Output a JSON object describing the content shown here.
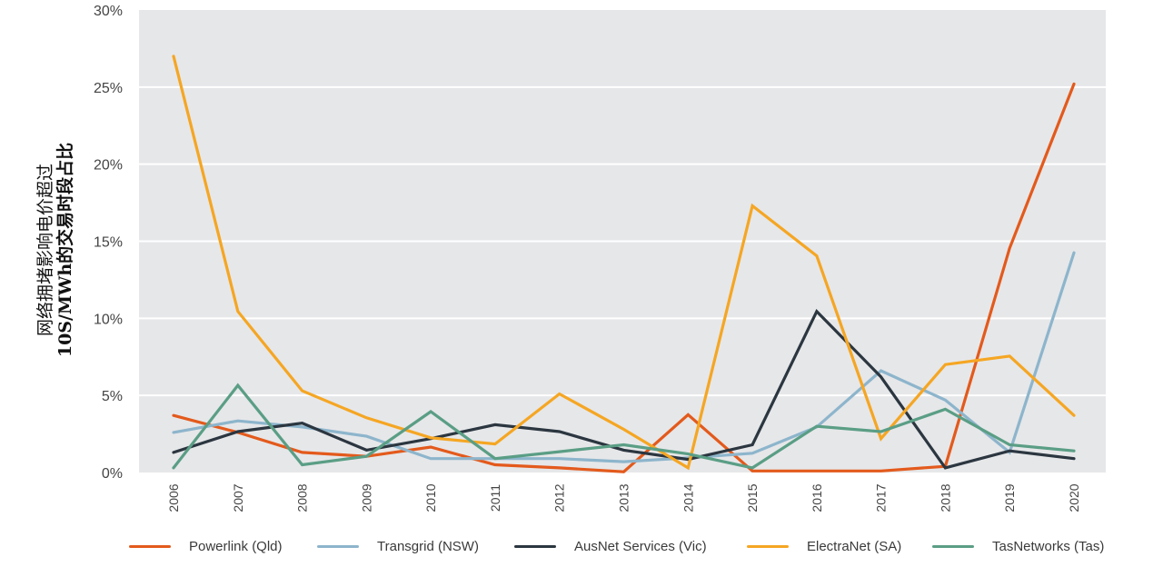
{
  "chart_data": {
    "type": "line",
    "title": "",
    "xlabel": "",
    "ylabel_lines": [
      "网络拥堵影响电价超过",
      "10S/MWh的交易时段占比"
    ],
    "x": [
      "2006",
      "2007",
      "2008",
      "2009",
      "2010",
      "2011",
      "2012",
      "2013",
      "2014",
      "2015",
      "2016",
      "2017",
      "2018",
      "2019",
      "2020"
    ],
    "ylim": [
      0,
      30
    ],
    "yticks": [
      0,
      5,
      10,
      15,
      20,
      25,
      30
    ],
    "ytick_labels": [
      "0%",
      "5%",
      "10%",
      "15%",
      "20%",
      "25%",
      "30%"
    ],
    "grid": true,
    "legend_position": "bottom",
    "series": [
      {
        "name": "Powerlink (Qld)",
        "color": "#E35A1C",
        "values": [
          3.7,
          2.6,
          1.3,
          1.05,
          1.65,
          0.5,
          0.3,
          0.05,
          3.75,
          0.1,
          0.1,
          0.1,
          0.4,
          14.55,
          25.2
        ]
      },
      {
        "name": "Transgrid (NSW)",
        "color": "#8DB5CC",
        "values": [
          2.6,
          3.35,
          2.95,
          2.35,
          0.9,
          0.9,
          0.9,
          0.7,
          0.95,
          1.25,
          2.95,
          6.6,
          4.7,
          1.3,
          14.25
        ]
      },
      {
        "name": "AusNet Services (Vic)",
        "color": "#2B3640",
        "values": [
          1.3,
          2.65,
          3.2,
          1.45,
          2.2,
          3.1,
          2.65,
          1.45,
          0.85,
          1.8,
          10.45,
          6.2,
          0.3,
          1.4,
          0.9
        ]
      },
      {
        "name": "ElectraNet (SA)",
        "color": "#F5A623",
        "values": [
          27.0,
          10.45,
          5.3,
          3.55,
          2.25,
          1.85,
          5.1,
          2.8,
          0.3,
          17.3,
          14.05,
          2.2,
          7.0,
          7.55,
          3.7
        ]
      },
      {
        "name": "TasNetworks (Tas)",
        "color": "#5A9E85",
        "values": [
          0.3,
          5.65,
          0.5,
          1.05,
          3.95,
          0.9,
          1.35,
          1.8,
          1.2,
          0.3,
          3.0,
          2.65,
          4.1,
          1.8,
          1.4
        ]
      }
    ]
  }
}
